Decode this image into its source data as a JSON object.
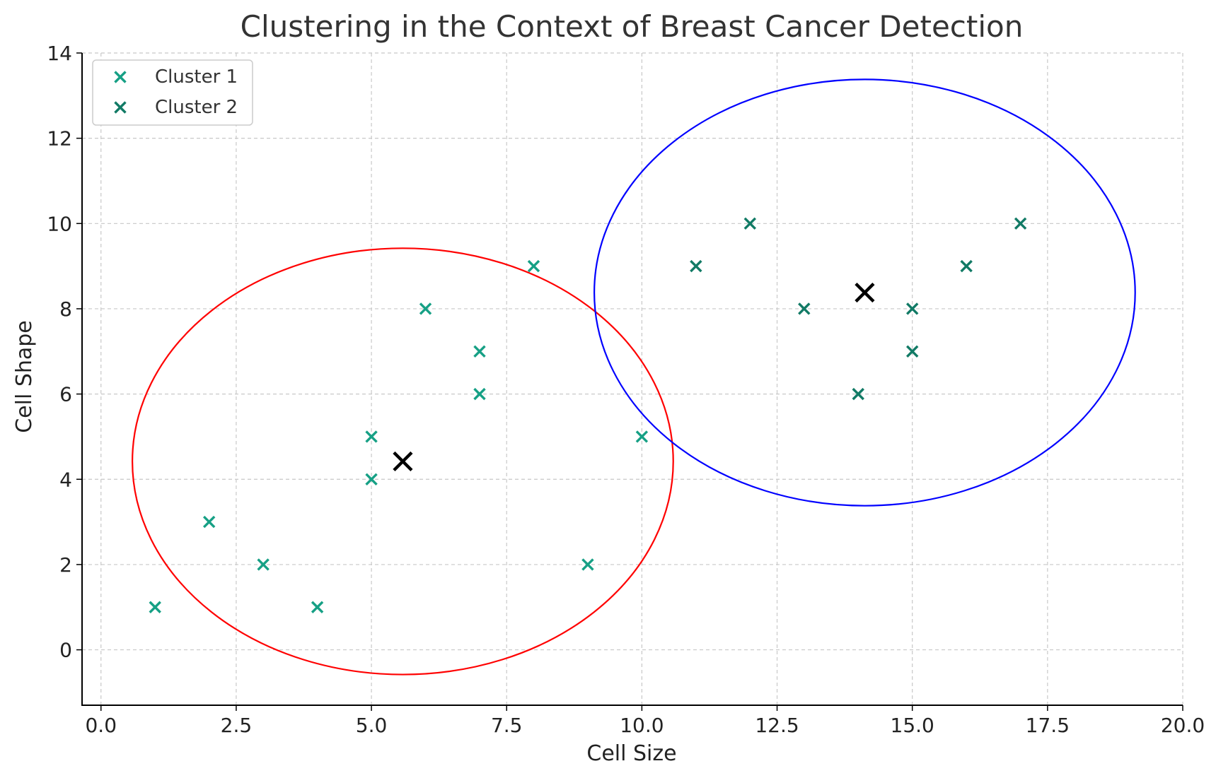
{
  "chart_data": {
    "type": "scatter",
    "title": "Clustering in the Context of Breast Cancer Detection",
    "xlabel": "Cell Size",
    "ylabel": "Cell Shape",
    "xlim": [
      -0.35,
      20.0
    ],
    "ylim": [
      -1.3,
      14.0
    ],
    "xticks": [
      0.0,
      2.5,
      5.0,
      7.5,
      10.0,
      12.5,
      15.0,
      17.5,
      20.0
    ],
    "xtick_labels": [
      "0.0",
      "2.5",
      "5.0",
      "7.5",
      "10.0",
      "12.5",
      "15.0",
      "17.5",
      "20.0"
    ],
    "yticks": [
      0,
      2,
      4,
      6,
      8,
      10,
      12,
      14
    ],
    "ytick_labels": [
      "0",
      "2",
      "4",
      "6",
      "8",
      "10",
      "12",
      "14"
    ],
    "grid": true,
    "legend_position": "top-left",
    "series": [
      {
        "name": "Cluster 1",
        "color": "#16a085",
        "marker": "x",
        "points": [
          [
            1,
            1
          ],
          [
            2,
            3
          ],
          [
            3,
            2
          ],
          [
            4,
            1
          ],
          [
            5,
            4
          ],
          [
            5,
            5
          ],
          [
            6,
            8
          ],
          [
            7,
            6
          ],
          [
            7,
            7
          ],
          [
            8,
            9
          ],
          [
            9,
            2
          ],
          [
            10,
            5
          ]
        ]
      },
      {
        "name": "Cluster 2",
        "color": "#117a65",
        "marker": "x",
        "points": [
          [
            11,
            9
          ],
          [
            12,
            10
          ],
          [
            13,
            8
          ],
          [
            14,
            6
          ],
          [
            15,
            7
          ],
          [
            15,
            8
          ],
          [
            16,
            9
          ],
          [
            17,
            10
          ]
        ]
      }
    ],
    "centroids": [
      {
        "x": 5.58,
        "y": 4.42,
        "color": "#000000"
      },
      {
        "x": 14.12,
        "y": 8.38,
        "color": "#000000"
      }
    ],
    "ellipses": [
      {
        "cx": 5.58,
        "cy": 4.42,
        "rx": 5.0,
        "ry": 5.0,
        "color": "#ff0000"
      },
      {
        "cx": 14.12,
        "cy": 8.38,
        "rx": 5.0,
        "ry": 5.0,
        "color": "#0000ff"
      }
    ]
  }
}
